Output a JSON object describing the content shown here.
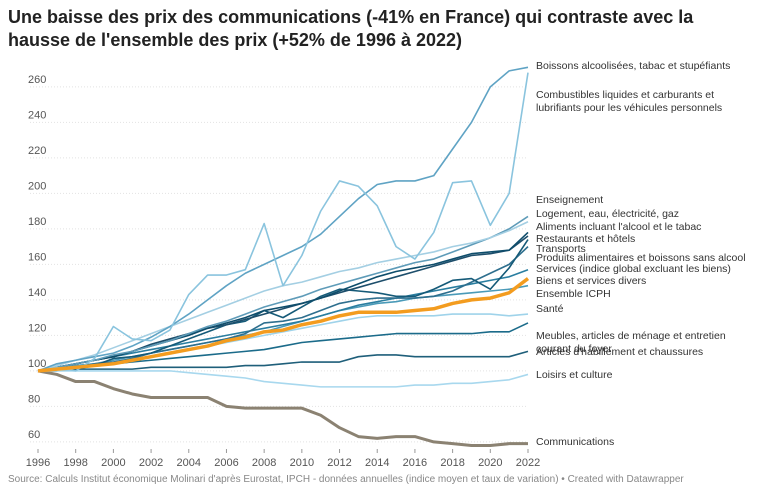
{
  "chart_data": {
    "type": "line",
    "title": "Une baisse des prix des communications (-41% en France) qui contraste avec la hausse de l'ensemble des prix (+52% de 1996 à 2022)",
    "source": "Source: Calculs Institut économique Molinari d'après Eurostat, IPCH - données annuelles (indice moyen et taux de variation) • Created with Datawrapper",
    "x": [
      1996,
      1997,
      1998,
      1999,
      2000,
      2001,
      2002,
      2003,
      2004,
      2005,
      2006,
      2007,
      2008,
      2009,
      2010,
      2011,
      2012,
      2013,
      2014,
      2015,
      2016,
      2017,
      2018,
      2019,
      2020,
      2021,
      2022
    ],
    "xlim": [
      1996,
      2022
    ],
    "xticks": [
      1996,
      1998,
      2000,
      2002,
      2004,
      2006,
      2008,
      2010,
      2012,
      2014,
      2016,
      2018,
      2020,
      2022
    ],
    "ylim": [
      56,
      274
    ],
    "yticks": [
      60,
      80,
      100,
      120,
      140,
      160,
      180,
      200,
      220,
      240,
      260
    ],
    "grid": true,
    "series": [
      {
        "name": "Boissons alcoolisées, tabac et stupéfiants",
        "color": "#5fa3c4",
        "values": [
          100,
          104,
          106,
          108,
          110,
          114,
          119,
          125,
          132,
          140,
          148,
          155,
          160,
          165,
          170,
          177,
          187,
          197,
          205,
          207,
          207,
          210,
          225,
          240,
          260,
          269,
          271
        ]
      },
      {
        "name": "Combustibles liquides et carburants et lubrifiants pour les véhicules personnels",
        "color": "#8ac4de",
        "values": [
          100,
          102,
          100,
          107,
          125,
          118,
          117,
          123,
          143,
          154,
          154,
          157,
          183,
          148,
          165,
          190,
          207,
          204,
          193,
          170,
          163,
          178,
          206,
          207,
          182,
          200,
          268
        ]
      },
      {
        "name": "Enseignement",
        "color": "#a4cfe3",
        "values": [
          100,
          103,
          106,
          109,
          113,
          117,
          121,
          125,
          129,
          133,
          137,
          141,
          145,
          148,
          150,
          153,
          156,
          158,
          161,
          163,
          165,
          167,
          170,
          172,
          175,
          179,
          184
        ]
      },
      {
        "name": "Logement, eau, électricité, gaz",
        "color": "#5e9bb8",
        "values": [
          100,
          102,
          104,
          106,
          109,
          111,
          114,
          117,
          121,
          125,
          128,
          132,
          136,
          139,
          142,
          146,
          149,
          152,
          155,
          158,
          161,
          163,
          167,
          171,
          175,
          180,
          187
        ]
      },
      {
        "name": "Aliments incluant l'alcool et le tabac",
        "color": "#0e4d6b",
        "values": [
          100,
          102,
          104,
          106,
          108,
          111,
          114,
          117,
          120,
          124,
          127,
          130,
          134,
          136,
          138,
          141,
          145,
          149,
          153,
          156,
          158,
          160,
          163,
          166,
          167,
          168,
          178
        ]
      },
      {
        "name": "Restaurants et hôtels",
        "color": "#1d4e6b",
        "values": [
          100,
          102,
          104,
          106,
          108,
          111,
          115,
          118,
          121,
          124,
          126,
          129,
          132,
          135,
          138,
          141,
          144,
          147,
          150,
          153,
          156,
          159,
          162,
          165,
          166,
          168,
          176
        ]
      },
      {
        "name": "Transports",
        "color": "#155a78",
        "values": [
          100,
          101,
          101,
          103,
          107,
          108,
          110,
          114,
          118,
          122,
          126,
          128,
          134,
          130,
          136,
          142,
          146,
          145,
          144,
          142,
          142,
          146,
          151,
          152,
          146,
          158,
          174
        ]
      },
      {
        "name": "Produits alimentaires et boissons sans alcool",
        "color": "#2e6f8e",
        "values": [
          100,
          101,
          102,
          104,
          105,
          107,
          110,
          112,
          114,
          116,
          118,
          121,
          127,
          128,
          130,
          134,
          138,
          140,
          141,
          141,
          141,
          142,
          145,
          150,
          155,
          160,
          170
        ]
      },
      {
        "name": "Services (indice global excluant les biens)",
        "color": "#2a7ea0",
        "values": [
          100,
          102,
          104,
          106,
          108,
          110,
          112,
          114,
          116,
          118,
          120,
          122,
          124,
          126,
          128,
          131,
          134,
          137,
          139,
          141,
          143,
          145,
          147,
          149,
          151,
          153,
          157
        ]
      },
      {
        "name": "Biens et services divers",
        "color": "#4a9ab8",
        "values": [
          100,
          101,
          103,
          104,
          106,
          108,
          110,
          112,
          114,
          116,
          118,
          120,
          122,
          125,
          128,
          131,
          134,
          136,
          138,
          139,
          141,
          142,
          143,
          144,
          145,
          146,
          148
        ]
      },
      {
        "name": "Santé",
        "color": "#9fd3ea",
        "values": [
          100,
          101,
          102,
          103,
          104,
          106,
          108,
          110,
          112,
          114,
          116,
          118,
          120,
          122,
          124,
          126,
          128,
          130,
          131,
          131,
          131,
          131,
          132,
          132,
          132,
          131,
          132
        ]
      },
      {
        "name": "Meubles, articles de ménage et entretien courant du foyer",
        "color": "#1b6b8a",
        "values": [
          100,
          101,
          102,
          103,
          104,
          105,
          106,
          107,
          108,
          109,
          110,
          111,
          112,
          114,
          116,
          117,
          118,
          119,
          120,
          121,
          121,
          121,
          121,
          121,
          122,
          122,
          127
        ]
      },
      {
        "name": "Articles d'habillement et chaussures",
        "color": "#1f5f7a",
        "values": [
          100,
          100,
          101,
          101,
          101,
          101,
          102,
          102,
          102,
          102,
          102,
          103,
          103,
          104,
          105,
          105,
          105,
          108,
          109,
          109,
          108,
          108,
          108,
          108,
          108,
          108,
          111
        ]
      },
      {
        "name": "Loisirs et culture",
        "color": "#a8d8ee",
        "values": [
          100,
          100,
          100,
          100,
          100,
          100,
          100,
          100,
          99,
          98,
          97,
          96,
          94,
          93,
          92,
          91,
          91,
          91,
          91,
          91,
          92,
          92,
          93,
          93,
          94,
          95,
          98
        ]
      },
      {
        "name": "Communications",
        "color": "#8b8272",
        "values": [
          100,
          98,
          94,
          94,
          90,
          87,
          85,
          85,
          85,
          85,
          80,
          79,
          79,
          79,
          79,
          75,
          68,
          63,
          62,
          63,
          63,
          60,
          59,
          58,
          58,
          59,
          59
        ]
      },
      {
        "name": "Ensemble ICPH",
        "color": "#f39c1f",
        "values": [
          100,
          101,
          102,
          103,
          104,
          106,
          108,
          110,
          112,
          114,
          117,
          119,
          122,
          123,
          126,
          128,
          131,
          133,
          133,
          133,
          134,
          135,
          138,
          140,
          141,
          144,
          152
        ]
      }
    ]
  }
}
